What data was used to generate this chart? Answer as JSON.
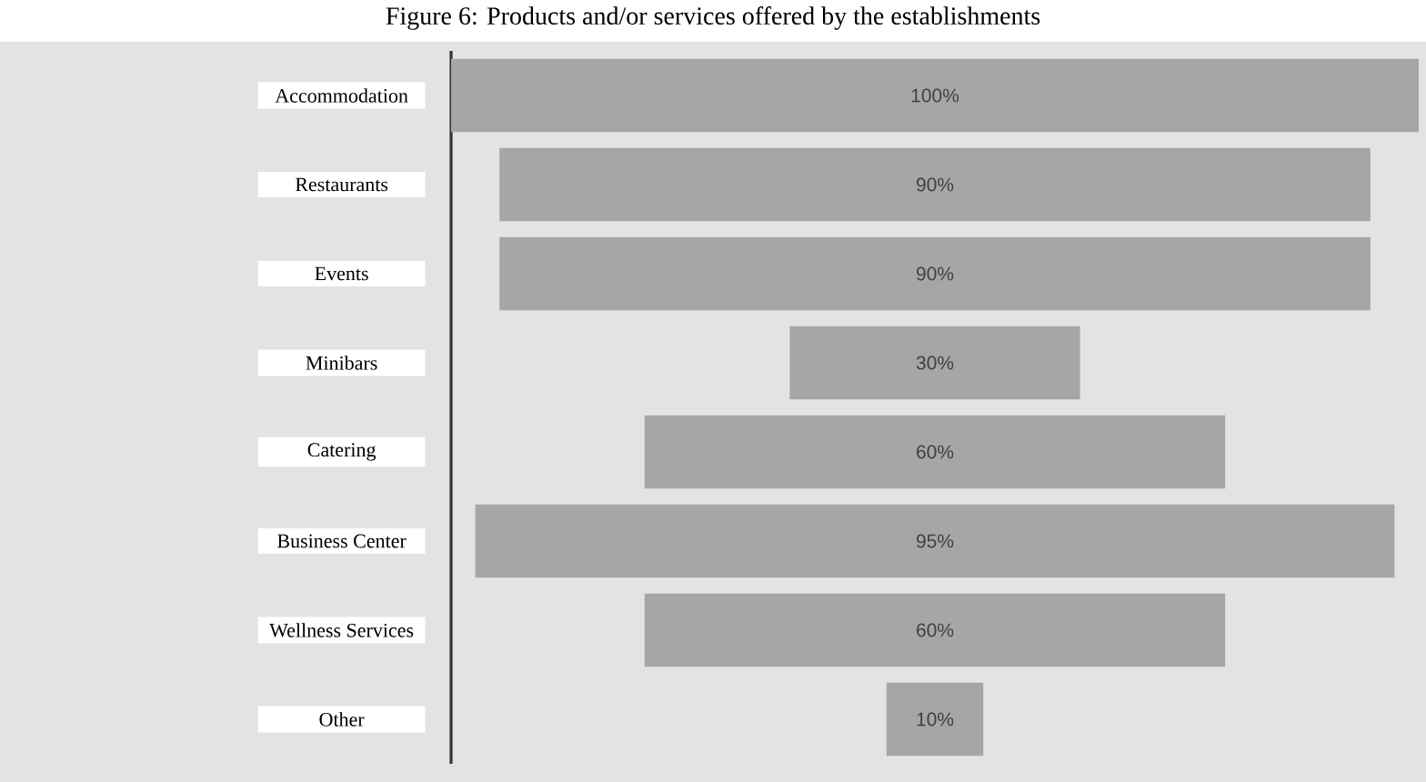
{
  "chart_data": {
    "type": "other",
    "title": "Figure 6: Products and/or services offered by the establishments",
    "categories": [
      "Accommodation",
      "Restaurants",
      "Events",
      "Minibars",
      "Catering",
      "Business Center",
      "Wellness Services",
      "Other"
    ],
    "values": [
      100,
      90,
      90,
      30,
      60,
      95,
      60,
      10
    ],
    "value_labels": [
      "100%",
      "90%",
      "90%",
      "30%",
      "60%",
      "95%",
      "60%",
      "10%"
    ],
    "color": "#a6a6a6"
  }
}
